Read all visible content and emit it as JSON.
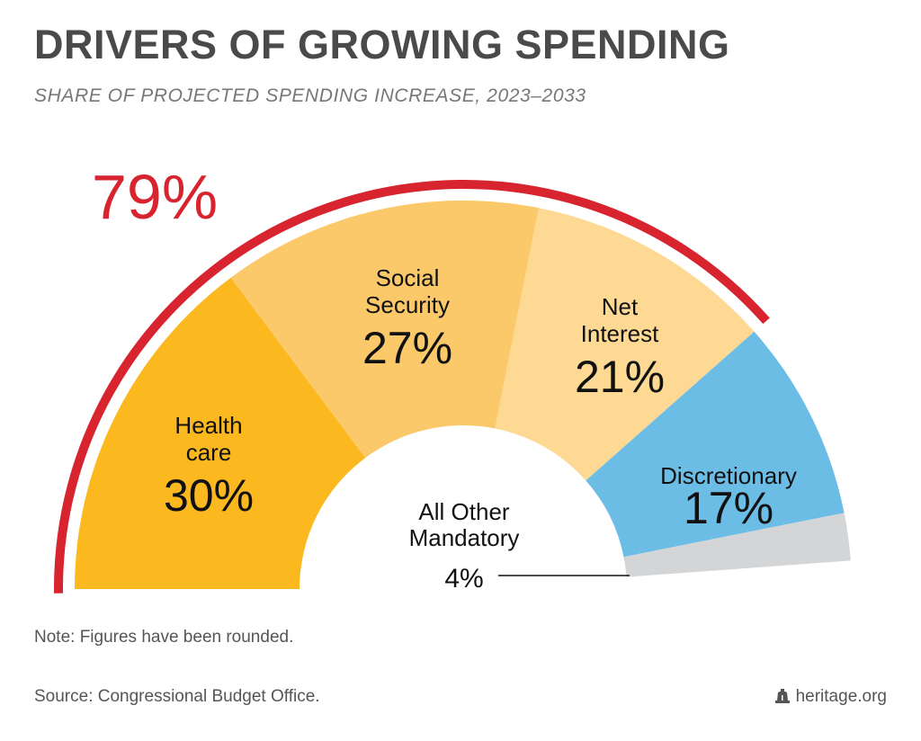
{
  "chart_data": {
    "type": "pie",
    "title": "DRIVERS OF GROWING SPENDING",
    "subtitle": "SHARE OF PROJECTED SPENDING INCREASE, 2023–2033",
    "slices": [
      {
        "label_lines": [
          "Health",
          "care"
        ],
        "value": 30,
        "value_label": "30%",
        "color": "#fbb81f"
      },
      {
        "label_lines": [
          "Social",
          "Security"
        ],
        "value": 27,
        "value_label": "27%",
        "color": "#fcc96a"
      },
      {
        "label_lines": [
          "Net",
          "Interest"
        ],
        "value": 21,
        "value_label": "21%",
        "color": "#fdd993"
      },
      {
        "label_lines": [
          "Discretionary"
        ],
        "value": 17,
        "value_label": "17%",
        "color": "#6cbde6"
      },
      {
        "label_lines": [
          "All Other",
          "Mandatory"
        ],
        "value": 4,
        "value_label": "4%",
        "color": "#d4d5d7"
      }
    ],
    "highlight": {
      "value_label": "79%",
      "color": "#d7242f"
    }
  },
  "note": "Note: Figures have been rounded.",
  "source": "Source: Congressional Budget Office.",
  "brand": {
    "text": "heritage.org",
    "icon": "liberty-bell-icon"
  }
}
